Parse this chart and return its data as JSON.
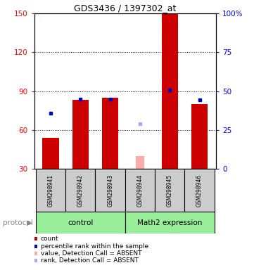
{
  "title": "GDS3436 / 1397302_at",
  "samples": [
    "GSM298941",
    "GSM298942",
    "GSM298943",
    "GSM298944",
    "GSM298945",
    "GSM298946"
  ],
  "left_ylim": [
    30,
    150
  ],
  "left_yticks": [
    30,
    60,
    90,
    120,
    150
  ],
  "right_ylim": [
    0,
    100
  ],
  "right_yticks": [
    0,
    25,
    50,
    75,
    100
  ],
  "bar_values": [
    54,
    83,
    85,
    null,
    150,
    80
  ],
  "absent_bar_values": [
    null,
    null,
    null,
    40,
    null,
    null
  ],
  "absent_bar_color": "#ffaaaa",
  "blue_marker_values": [
    73,
    84,
    84,
    null,
    91,
    83
  ],
  "blue_marker_color": "#0000cc",
  "absent_rank_values": [
    null,
    null,
    null,
    65,
    null,
    null
  ],
  "absent_rank_color": "#aaaaee",
  "bar_color": "#cc0000",
  "control_group": [
    0,
    1,
    2
  ],
  "math2_group": [
    3,
    4,
    5
  ],
  "control_label": "control",
  "math2_label": "Math2 expression",
  "protocol_label": "protocol",
  "group_bg_color": "#99ee99",
  "sample_bg_color": "#cccccc",
  "legend_items": [
    {
      "color": "#cc0000",
      "label": "count"
    },
    {
      "color": "#0000cc",
      "label": "percentile rank within the sample"
    },
    {
      "color": "#ffaaaa",
      "label": "value, Detection Call = ABSENT"
    },
    {
      "color": "#aaaaee",
      "label": "rank, Detection Call = ABSENT"
    }
  ],
  "bar_width": 0.55,
  "grid_lines": [
    60,
    90,
    120
  ],
  "title_fontsize": 9,
  "tick_fontsize": 7.5,
  "sample_fontsize": 5.5,
  "group_fontsize": 7.5,
  "legend_fontsize": 6.5,
  "protocol_fontsize": 7.5
}
